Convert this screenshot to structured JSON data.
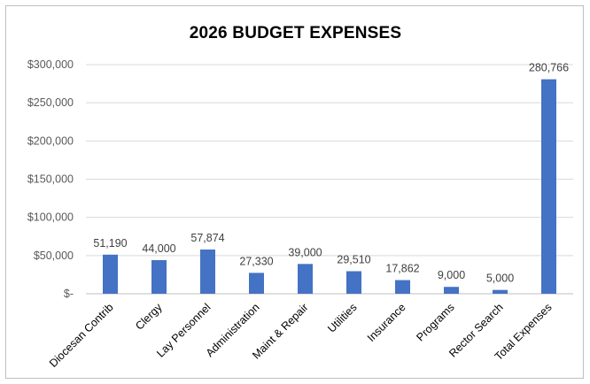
{
  "chart_data": {
    "type": "bar",
    "title": "2026 BUDGET EXPENSES",
    "xlabel": "",
    "ylabel": "",
    "categories": [
      "Diocesan Contrib",
      "Clergy",
      "Lay Personnel",
      "Administration",
      "Maint & Repair",
      "Utilities",
      "Insurance",
      "Programs",
      "Rector Search",
      "Total Expenses"
    ],
    "values": [
      51190,
      44000,
      57874,
      27330,
      39000,
      29510,
      17862,
      9000,
      5000,
      280766
    ],
    "data_labels": [
      "51,190",
      "44,000",
      "57,874",
      "27,330",
      "39,000",
      "29,510",
      "17,862",
      "9,000",
      "5,000",
      "280,766"
    ],
    "ylim": [
      0,
      300000
    ],
    "yticks": [
      0,
      50000,
      100000,
      150000,
      200000,
      250000,
      300000
    ],
    "ytick_labels": [
      "$-",
      "$50,000",
      "$100,000",
      "$150,000",
      "$200,000",
      "$250,000",
      "$300,000"
    ],
    "grid": true,
    "legend": "none",
    "bar_color": "#4472c4",
    "grid_color": "#d9d9d9"
  }
}
